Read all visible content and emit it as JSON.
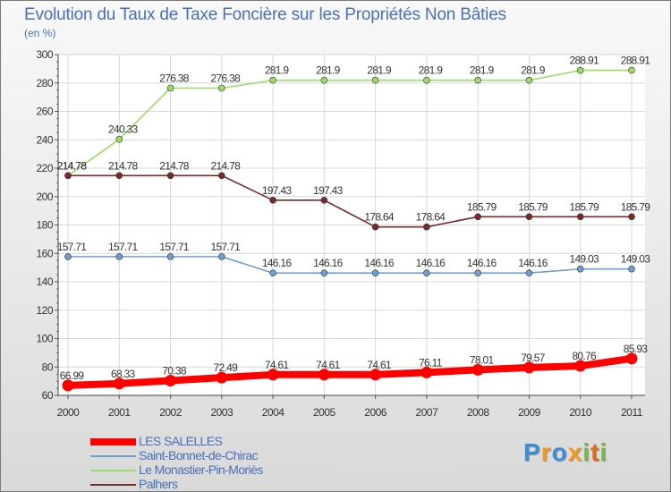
{
  "title": "Evolution du Taux de Taxe Foncière sur les Propriétés Non Bâties",
  "unit": "(en %)",
  "brand": {
    "letters": [
      "P",
      "r",
      "o",
      "x",
      "i",
      "t",
      "i"
    ],
    "colors": [
      "#3a8fd8",
      "#f29a1c",
      "#3a8fd8",
      "#f29a1c",
      "#7ab648",
      "#e06b1b",
      "#7ab648"
    ]
  },
  "chart_data": {
    "type": "line",
    "title": "Evolution du Taux de Taxe Foncière sur les Propriétés Non Bâties",
    "xlabel": "",
    "ylabel": "(en %)",
    "categories": [
      "2000",
      "2001",
      "2002",
      "2003",
      "2004",
      "2005",
      "2006",
      "2007",
      "2008",
      "2009",
      "2010",
      "2011"
    ],
    "ylim": [
      60,
      300
    ],
    "yticks": [
      60,
      80,
      100,
      120,
      140,
      160,
      180,
      200,
      220,
      240,
      260,
      280,
      300
    ],
    "grid": true,
    "legend_position": "bottom-left",
    "series": [
      {
        "name": "LES SALELLES",
        "color": "#ff0000",
        "thick": true,
        "values": [
          66.99,
          68.33,
          70.38,
          72.49,
          74.61,
          74.61,
          74.61,
          76.11,
          78.01,
          79.57,
          80.76,
          85.93
        ],
        "labels": [
          "66.99",
          "68.33",
          "70.38",
          "72.49",
          "74.61",
          "74.61",
          "74.61",
          "76.11",
          "78.01",
          "79.57",
          "80.76",
          "85.93"
        ]
      },
      {
        "name": "Saint-Bonnet-de-Chirac",
        "color": "#6f9fcf",
        "thick": false,
        "values": [
          157.71,
          157.71,
          157.71,
          157.71,
          146.16,
          146.16,
          146.16,
          146.16,
          146.16,
          146.16,
          149.03,
          149.03
        ],
        "labels": [
          "157.71",
          "157.71",
          "157.71",
          "157.71",
          "146.16",
          "146.16",
          "146.16",
          "146.16",
          "146.16",
          "146.16",
          "149.03",
          "149.03"
        ]
      },
      {
        "name": "Le Monastier-Pin-Moriès",
        "color": "#99dd66",
        "thick": false,
        "values": [
          214.78,
          240.33,
          276.38,
          276.38,
          281.9,
          281.9,
          281.9,
          281.9,
          281.9,
          281.9,
          288.91,
          288.91
        ],
        "labels": [
          "214.78",
          "240.33",
          "276.38",
          "276.38",
          "281.9",
          "281.9",
          "281.9",
          "281.9",
          "281.9",
          "281.9",
          "288.91",
          "288.91"
        ]
      },
      {
        "name": "Palhers",
        "color": "#7a2a2a",
        "thick": false,
        "values": [
          214.78,
          214.78,
          214.78,
          214.78,
          197.43,
          197.43,
          178.64,
          178.64,
          185.79,
          185.79,
          185.79,
          185.79
        ],
        "labels": [
          "214.78",
          "214.78",
          "214.78",
          "214.78",
          "197.43",
          "197.43",
          "178.64",
          "178.64",
          "185.79",
          "185.79",
          "185.79",
          "185.79"
        ]
      }
    ]
  }
}
